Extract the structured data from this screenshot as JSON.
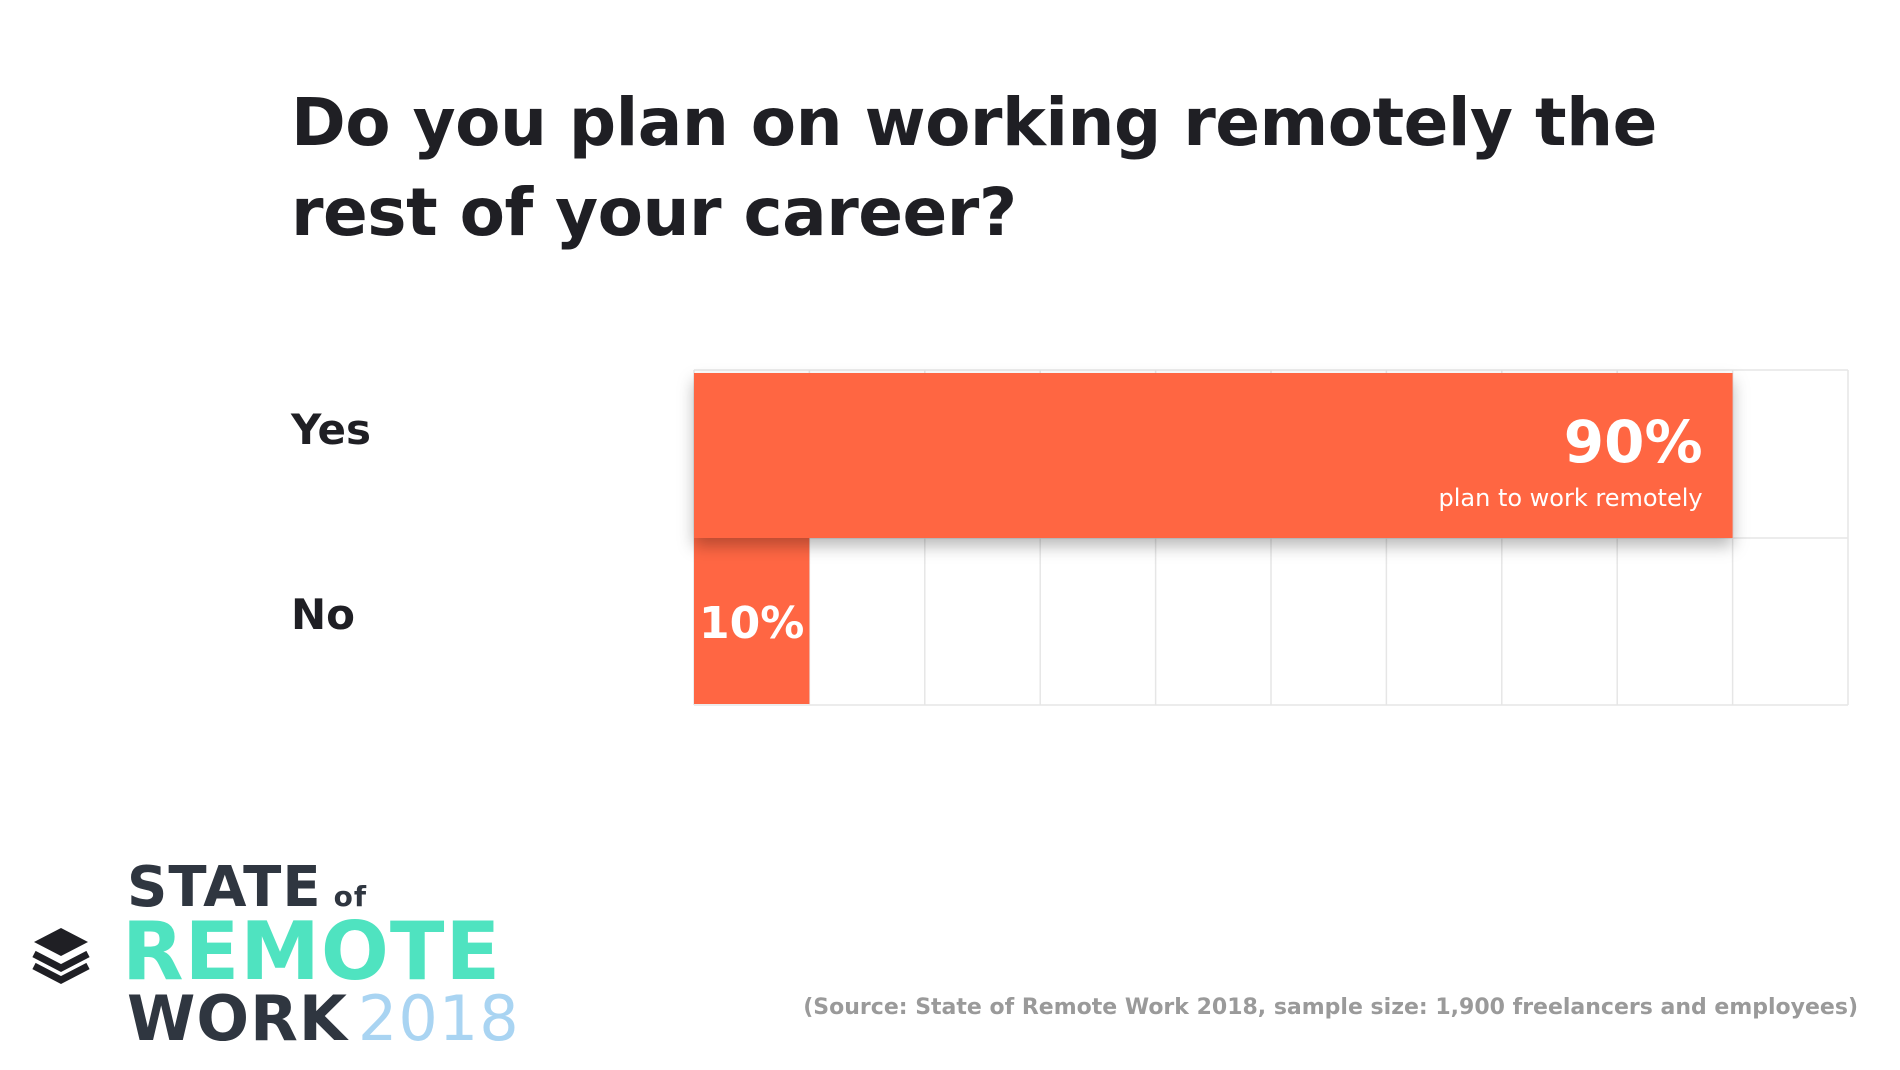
{
  "title_lines": [
    "Do you plan on working remotely the",
    "rest of your career?"
  ],
  "chart_data": {
    "type": "bar",
    "orientation": "horizontal",
    "categories": [
      "Yes",
      "No"
    ],
    "values": [
      90,
      10
    ],
    "xlim": [
      0,
      100
    ],
    "grid": true,
    "data_labels": [
      "90%",
      "10%"
    ],
    "annotations": [
      "plan to work remotely"
    ],
    "bar_color": "#ff6643"
  },
  "source": "(Source: State of Remote Work 2018, sample size: 1,900 freelancers and employees)",
  "logo": {
    "line1": "STATE",
    "of": "of",
    "line2": "REMOTE",
    "line3": "WORK",
    "year": "2018",
    "icon": "layers-icon"
  }
}
